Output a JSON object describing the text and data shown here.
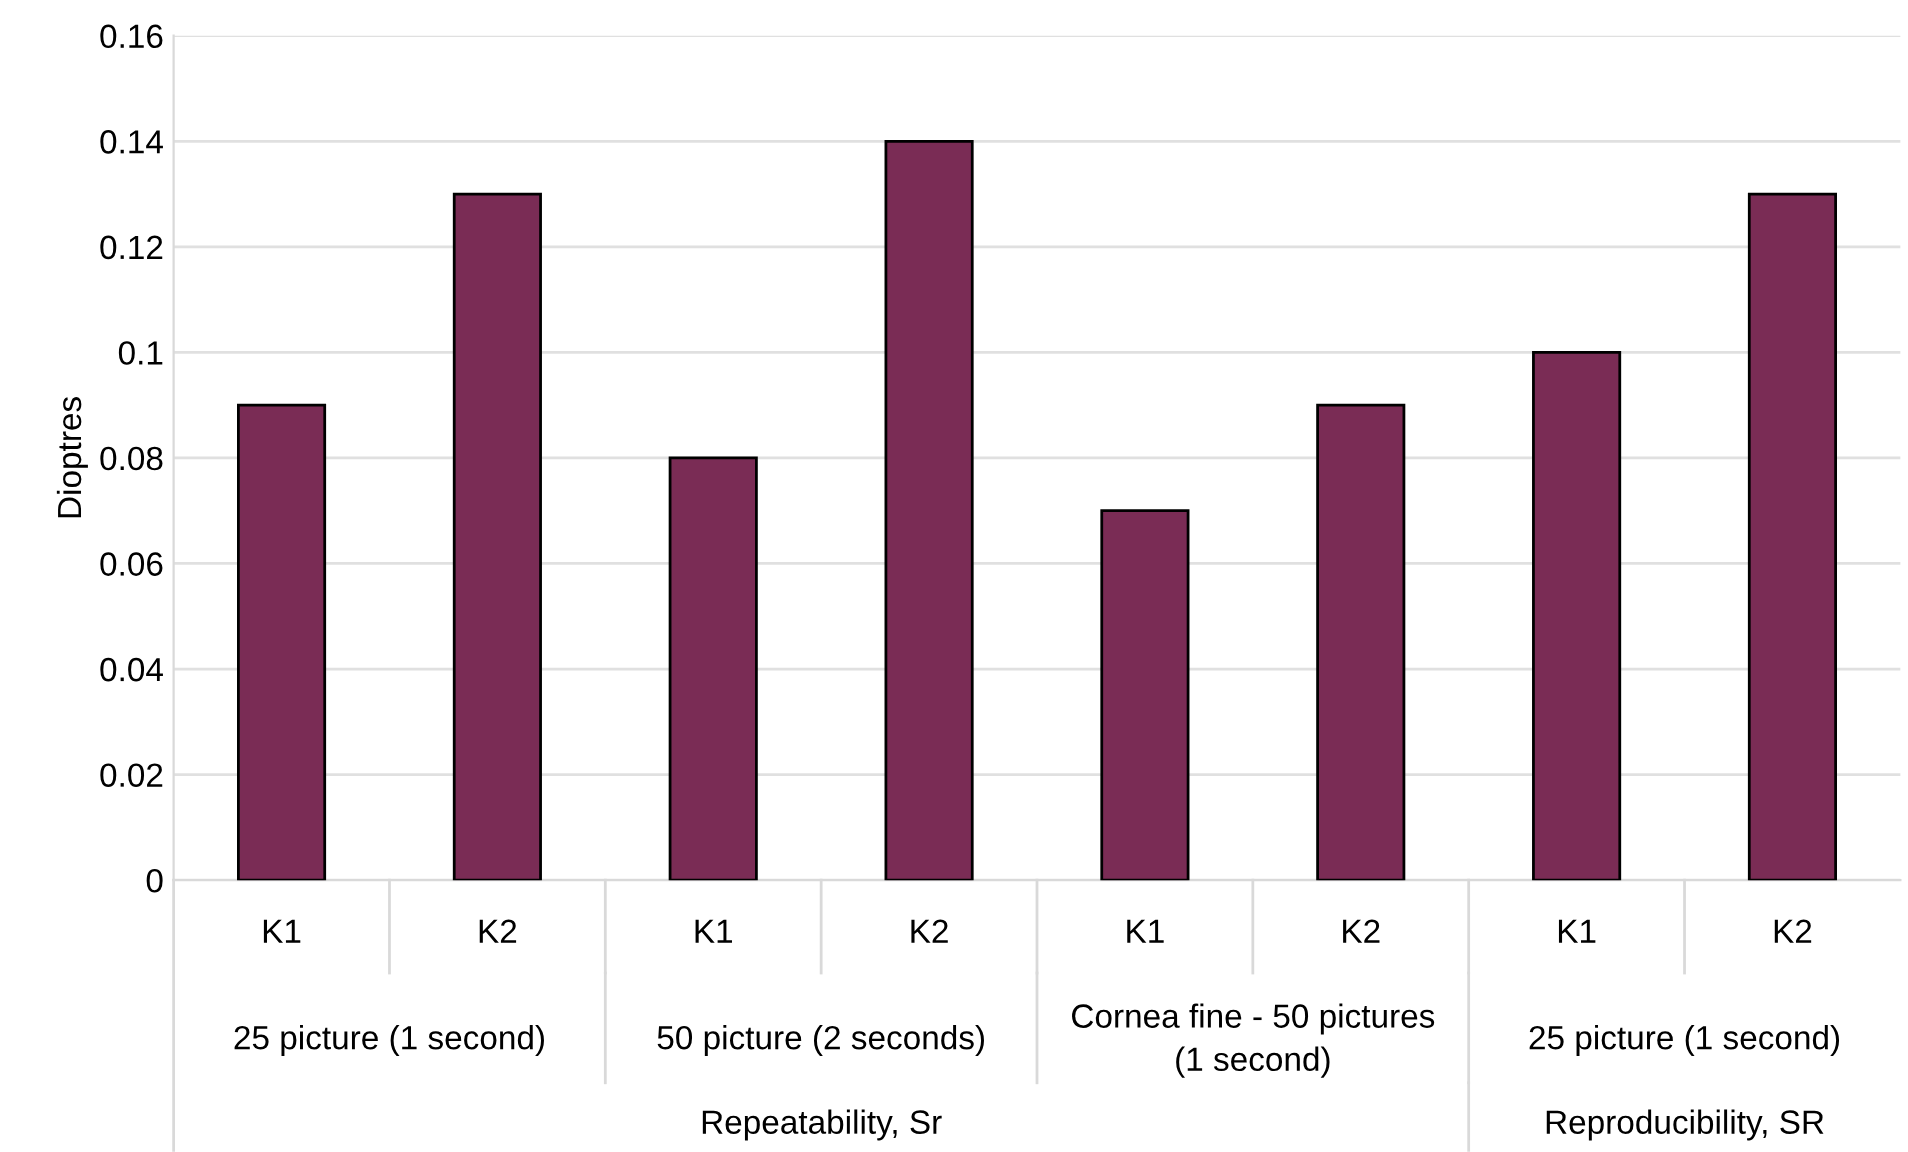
{
  "chart_data": {
    "type": "bar",
    "ylabel": "Dioptres",
    "categories": [
      "K1",
      "K2",
      "K1",
      "K2",
      "K1",
      "K2",
      "K1",
      "K2"
    ],
    "values": [
      0.09,
      0.13,
      0.08,
      0.14,
      0.07,
      0.09,
      0.1,
      0.13
    ],
    "color": "#7a2c55",
    "ylim": [
      0,
      0.16
    ],
    "yticks": [
      0,
      0.02,
      0.04,
      0.06,
      0.08,
      0.1,
      0.12,
      0.14,
      0.16
    ],
    "grid": "y",
    "annotations": [
      "25 picture (1 second)",
      "50 picture (2 seconds)",
      "Cornea fine - 50 pictures\n(1 second)",
      "25 picture (1 second)",
      "Repeatability, Sr",
      "Reproducibility, SR"
    ]
  }
}
